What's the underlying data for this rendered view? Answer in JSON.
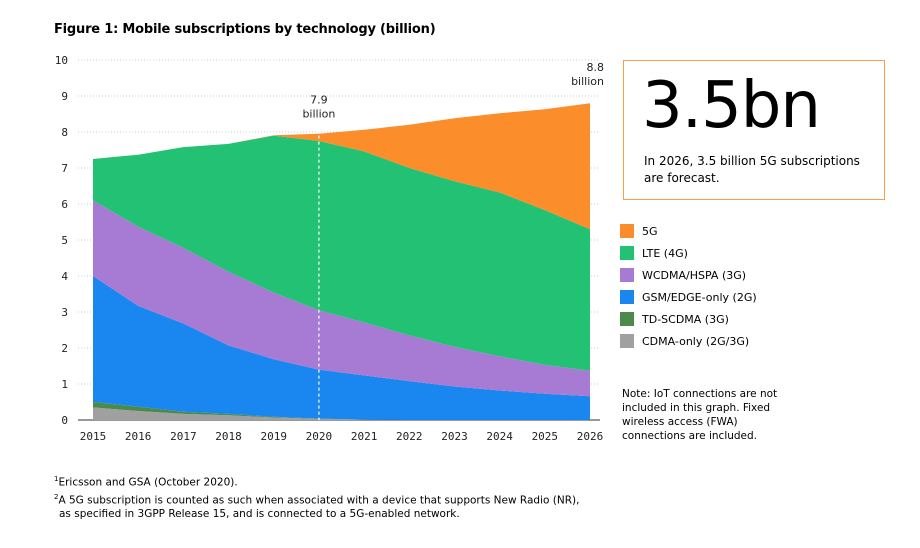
{
  "figure_title": "Figure 1: Mobile subscriptions by technology (billion)",
  "callout": {
    "value": "3.5bn",
    "text": "In 2026, 3.5 billion 5G subscriptions are forecast."
  },
  "note": "Note: IoT connections are not included in this graph. Fixed wireless access (FWA) connections are included.",
  "footnotes": [
    {
      "mark": "1",
      "text": "Ericsson and GSA (October 2020)."
    },
    {
      "mark": "2",
      "text": "A 5G subscription is counted as such when associated with a device that supports New Radio (NR),"
    },
    {
      "mark": "",
      "text": "as specified in 3GPP Release 15, and is connected to a 5G-enabled network."
    }
  ],
  "annotations": [
    {
      "year": 2020,
      "value": 7.9,
      "line1": "7.9",
      "line2": "billion",
      "dashed_line": true
    },
    {
      "year": 2026,
      "value": 8.8,
      "line1": "8.8",
      "line2": "billion",
      "dashed_line": false
    }
  ],
  "chart_data": {
    "type": "area",
    "stacked": true,
    "title": "Figure 1: Mobile subscriptions by technology (billion)",
    "x": [
      2015,
      2016,
      2017,
      2018,
      2019,
      2020,
      2021,
      2022,
      2023,
      2024,
      2025,
      2026
    ],
    "xlabel": "",
    "ylabel": "",
    "ylim": [
      0,
      10
    ],
    "yticks": [
      0,
      1,
      2,
      3,
      4,
      5,
      6,
      7,
      8,
      9,
      10
    ],
    "grid": "horizontal-dotted",
    "legend_position": "right",
    "series": [
      {
        "name": "CDMA-only (2G/3G)",
        "color": "#a0a0a0",
        "values": [
          0.35,
          0.25,
          0.17,
          0.13,
          0.07,
          0.03,
          0.01,
          0.0,
          0.0,
          0.0,
          0.0,
          0.0
        ]
      },
      {
        "name": "TD-SCDMA (3G)",
        "color": "#4c8a4c",
        "values": [
          0.15,
          0.12,
          0.06,
          0.04,
          0.02,
          0.01,
          0.0,
          0.0,
          0.0,
          0.0,
          0.0,
          0.0
        ]
      },
      {
        "name": "GSM/EDGE-only (2G)",
        "color": "#1a86f0",
        "values": [
          3.5,
          2.8,
          2.45,
          1.9,
          1.6,
          1.36,
          1.23,
          1.08,
          0.93,
          0.82,
          0.73,
          0.66
        ]
      },
      {
        "name": "WCDMA/HSPA (3G)",
        "color": "#a77ad4",
        "values": [
          2.1,
          2.2,
          2.1,
          2.05,
          1.85,
          1.65,
          1.47,
          1.27,
          1.1,
          0.95,
          0.8,
          0.71
        ]
      },
      {
        "name": "LTE (4G)",
        "color": "#22c173",
        "values": [
          1.15,
          2.0,
          2.8,
          3.55,
          4.36,
          4.7,
          4.75,
          4.65,
          4.6,
          4.55,
          4.3,
          3.93
        ]
      },
      {
        "name": "5G",
        "color": "#fb8d2a",
        "values": [
          0.0,
          0.0,
          0.0,
          0.0,
          0.01,
          0.2,
          0.6,
          1.2,
          1.75,
          2.2,
          2.8,
          3.5
        ]
      }
    ]
  }
}
